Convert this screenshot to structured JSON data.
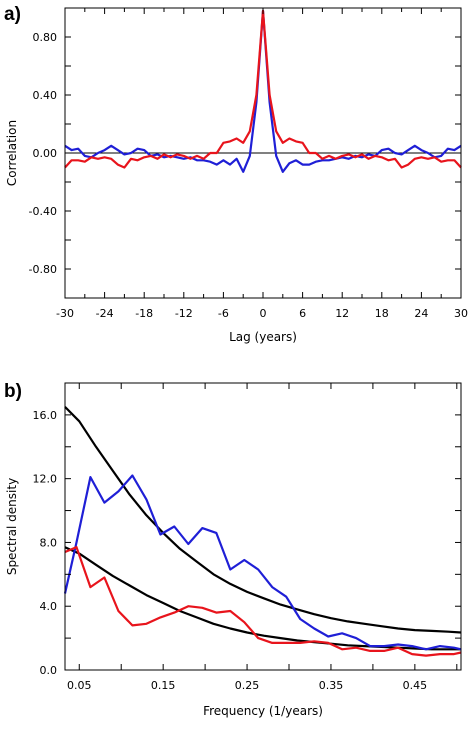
{
  "chart_data": [
    {
      "id": "a",
      "panel_label": "a)",
      "type": "line",
      "xlabel": "Lag (years)",
      "ylabel": "Correlation",
      "xlim": [
        -30,
        30
      ],
      "ylim": [
        -1.0,
        1.0
      ],
      "xticks": [
        -30,
        -24,
        -18,
        -12,
        -6,
        0,
        6,
        12,
        18,
        24,
        30
      ],
      "xtick_labels": [
        "-30",
        "-24",
        "-18",
        "-12",
        "-6",
        "0",
        "6",
        "12",
        "18",
        "24",
        "30"
      ],
      "yticks": [
        -0.8,
        -0.4,
        0.0,
        0.4,
        0.8
      ],
      "ytick_labels": [
        "-0.80",
        "-0.40",
        "0.00",
        "0.40",
        "0.80"
      ],
      "zero_line": true,
      "series": [
        {
          "color": "#1f1fd6",
          "x": [
            -30,
            -29,
            -28,
            -27,
            -26,
            -25,
            -24,
            -23,
            -22,
            -21,
            -20,
            -19,
            -18,
            -17,
            -16,
            -15,
            -14,
            -13,
            -12,
            -11,
            -10,
            -9,
            -8,
            -7,
            -6,
            -5,
            -4,
            -3,
            -2,
            -1,
            0,
            1,
            2,
            3,
            4,
            5,
            6,
            7,
            8,
            9,
            10,
            11,
            12,
            13,
            14,
            15,
            16,
            17,
            18,
            19,
            20,
            21,
            22,
            23,
            24,
            25,
            26,
            27,
            28,
            29,
            30
          ],
          "y": [
            0.05,
            0.02,
            0.03,
            -0.02,
            -0.03,
            0.0,
            0.02,
            0.05,
            0.02,
            -0.01,
            0.0,
            0.03,
            0.02,
            -0.02,
            -0.01,
            -0.03,
            -0.02,
            -0.03,
            -0.04,
            -0.03,
            -0.05,
            -0.05,
            -0.06,
            -0.08,
            -0.05,
            -0.08,
            -0.04,
            -0.13,
            -0.02,
            0.35,
            0.98,
            0.35,
            -0.02,
            -0.13,
            -0.07,
            -0.05,
            -0.08,
            -0.08,
            -0.06,
            -0.05,
            -0.05,
            -0.04,
            -0.03,
            -0.04,
            -0.02,
            -0.03,
            -0.01,
            -0.02,
            0.02,
            0.03,
            0.0,
            -0.01,
            0.02,
            0.05,
            0.02,
            0.0,
            -0.03,
            -0.02,
            0.03,
            0.02,
            0.05
          ]
        },
        {
          "color": "#e8141c",
          "x": [
            -30,
            -29,
            -28,
            -27,
            -26,
            -25,
            -24,
            -23,
            -22,
            -21,
            -20,
            -19,
            -18,
            -17,
            -16,
            -15,
            -14,
            -13,
            -12,
            -11,
            -10,
            -9,
            -8,
            -7,
            -6,
            -5,
            -4,
            -3,
            -2,
            -1,
            0,
            1,
            2,
            3,
            4,
            5,
            6,
            7,
            8,
            9,
            10,
            11,
            12,
            13,
            14,
            15,
            16,
            17,
            18,
            19,
            20,
            21,
            22,
            23,
            24,
            25,
            26,
            27,
            28,
            29,
            30
          ],
          "y": [
            -0.1,
            -0.05,
            -0.05,
            -0.06,
            -0.03,
            -0.04,
            -0.03,
            -0.04,
            -0.08,
            -0.1,
            -0.04,
            -0.05,
            -0.03,
            -0.02,
            -0.04,
            -0.01,
            -0.03,
            -0.01,
            -0.02,
            -0.04,
            -0.02,
            -0.04,
            0.0,
            0.0,
            0.07,
            0.08,
            0.1,
            0.07,
            0.15,
            0.4,
            0.98,
            0.4,
            0.15,
            0.07,
            0.1,
            0.08,
            0.07,
            0.0,
            0.0,
            -0.04,
            -0.02,
            -0.04,
            -0.02,
            -0.01,
            -0.03,
            -0.01,
            -0.04,
            -0.02,
            -0.03,
            -0.05,
            -0.04,
            -0.1,
            -0.08,
            -0.04,
            -0.03,
            -0.04,
            -0.03,
            -0.06,
            -0.05,
            -0.05,
            -0.1
          ]
        }
      ]
    },
    {
      "id": "b",
      "panel_label": "b)",
      "type": "line",
      "xlabel": "Frequency (1/years)",
      "ylabel": "Spectral density",
      "xlim": [
        0.033,
        0.505
      ],
      "ylim": [
        0.0,
        18.0
      ],
      "xticks": [
        0.05,
        0.15,
        0.25,
        0.35,
        0.45
      ],
      "xtick_labels": [
        "0.05",
        "0.15",
        "0.25",
        "0.35",
        "0.45"
      ],
      "minor_xticks": [
        0.1,
        0.2,
        0.3,
        0.4,
        0.5
      ],
      "yticks": [
        0.0,
        4.0,
        8.0,
        12.0,
        16.0
      ],
      "ytick_labels": [
        "0.0",
        "4.0",
        "8.0",
        "12.0",
        "16.0"
      ],
      "minor_yticks": [
        2.0,
        6.0,
        10.0,
        14.0
      ],
      "series": [
        {
          "color": "#000000",
          "x": [
            0.033,
            0.05,
            0.07,
            0.09,
            0.11,
            0.13,
            0.15,
            0.17,
            0.19,
            0.21,
            0.23,
            0.25,
            0.27,
            0.29,
            0.31,
            0.33,
            0.35,
            0.37,
            0.39,
            0.41,
            0.43,
            0.45,
            0.47,
            0.49,
            0.505
          ],
          "y": [
            16.5,
            15.6,
            14.0,
            12.5,
            11.0,
            9.7,
            8.6,
            7.6,
            6.8,
            6.0,
            5.4,
            4.9,
            4.5,
            4.1,
            3.8,
            3.5,
            3.25,
            3.05,
            2.9,
            2.75,
            2.6,
            2.5,
            2.45,
            2.4,
            2.35
          ]
        },
        {
          "color": "#000000",
          "x": [
            0.033,
            0.05,
            0.07,
            0.09,
            0.11,
            0.13,
            0.15,
            0.17,
            0.19,
            0.21,
            0.23,
            0.25,
            0.27,
            0.29,
            0.31,
            0.33,
            0.35,
            0.37,
            0.39,
            0.41,
            0.43,
            0.45,
            0.47,
            0.49,
            0.505
          ],
          "y": [
            7.7,
            7.3,
            6.6,
            5.9,
            5.3,
            4.7,
            4.2,
            3.7,
            3.3,
            2.9,
            2.6,
            2.35,
            2.15,
            2.0,
            1.85,
            1.75,
            1.65,
            1.55,
            1.5,
            1.45,
            1.4,
            1.35,
            1.3,
            1.3,
            1.3
          ]
        },
        {
          "color": "#1f1fd6",
          "x": [
            0.033,
            0.0467,
            0.0633,
            0.08,
            0.0967,
            0.1133,
            0.13,
            0.1467,
            0.1633,
            0.18,
            0.1967,
            0.2133,
            0.23,
            0.2467,
            0.2633,
            0.28,
            0.2967,
            0.3133,
            0.33,
            0.3467,
            0.3633,
            0.38,
            0.3967,
            0.4133,
            0.43,
            0.4467,
            0.4633,
            0.48,
            0.4967,
            0.505
          ],
          "y": [
            4.8,
            8.0,
            12.1,
            10.5,
            11.2,
            12.2,
            10.7,
            8.5,
            9.0,
            7.9,
            8.9,
            8.6,
            6.3,
            6.9,
            6.3,
            5.2,
            4.6,
            3.2,
            2.6,
            2.1,
            2.3,
            2.0,
            1.5,
            1.5,
            1.6,
            1.5,
            1.3,
            1.5,
            1.4,
            1.3
          ]
        },
        {
          "color": "#e8141c",
          "x": [
            0.033,
            0.0467,
            0.0633,
            0.08,
            0.0967,
            0.1133,
            0.13,
            0.1467,
            0.1633,
            0.18,
            0.1967,
            0.2133,
            0.23,
            0.2467,
            0.2633,
            0.28,
            0.2967,
            0.3133,
            0.33,
            0.3467,
            0.3633,
            0.38,
            0.3967,
            0.4133,
            0.43,
            0.4467,
            0.4633,
            0.48,
            0.4967,
            0.505
          ],
          "y": [
            7.4,
            7.7,
            5.2,
            5.8,
            3.7,
            2.8,
            2.9,
            3.3,
            3.6,
            4.0,
            3.9,
            3.6,
            3.7,
            3.0,
            2.0,
            1.7,
            1.7,
            1.7,
            1.8,
            1.7,
            1.3,
            1.4,
            1.2,
            1.2,
            1.4,
            1.0,
            0.9,
            1.0,
            1.0,
            1.1
          ]
        }
      ]
    }
  ]
}
